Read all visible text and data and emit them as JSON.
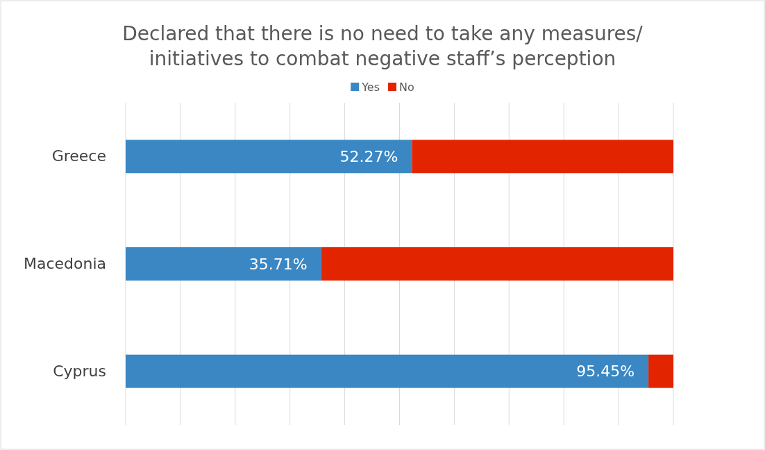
{
  "chart_data": {
    "type": "bar",
    "title": "Declared that there is no need to take any measures/ initiatives to combat negative staff’s perception",
    "orientation": "horizontal",
    "stacked": true,
    "categories": [
      "Greece",
      "Macedonia",
      "Cyprus"
    ],
    "series": [
      {
        "name": "Yes",
        "color": "#3a87c4",
        "values": [
          52.27,
          35.71,
          95.45
        ],
        "value_labels": [
          "52.27%",
          "35.71%",
          "95.45%"
        ]
      },
      {
        "name": "No",
        "color": "#e32400",
        "values": [
          47.73,
          64.29,
          4.55
        ]
      }
    ],
    "xlim": [
      0,
      100
    ],
    "xticks": [
      {
        "value": 0,
        "label": null
      },
      {
        "value": 10,
        "label": null
      },
      {
        "value": 20,
        "label": null
      },
      {
        "value": 30,
        "label": null
      },
      {
        "value": 40,
        "label": null
      },
      {
        "value": 50,
        "label": null
      },
      {
        "value": 60,
        "label": null
      },
      {
        "value": 70,
        "label": null
      },
      {
        "value": 80,
        "label": null
      },
      {
        "value": 90,
        "label": null
      },
      {
        "value": 100,
        "label": null
      }
    ],
    "tick_labels": "y",
    "grid": "x",
    "legend": "top"
  }
}
